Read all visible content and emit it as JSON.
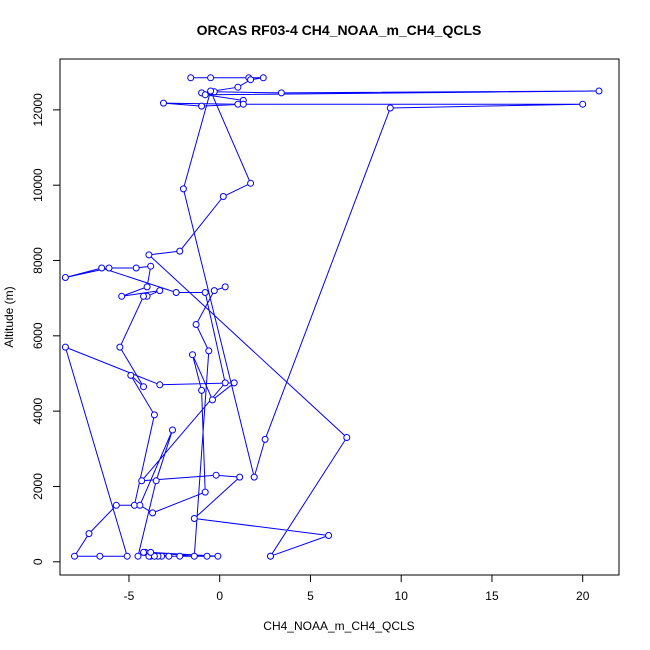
{
  "chart_data": {
    "type": "line",
    "title": "ORCAS RF03-4 CH4_NOAA_m_CH4_QCLS",
    "xlabel": "CH4_NOAA_m_CH4_QCLS",
    "ylabel": "Altitude (m)",
    "xlim": [
      -8.8,
      22
    ],
    "ylim": [
      -350,
      13350
    ],
    "xticks": [
      -5,
      0,
      5,
      10,
      15,
      20
    ],
    "yticks": [
      0,
      2000,
      4000,
      6000,
      8000,
      10000,
      12000
    ],
    "grid": false,
    "marker": "open-circle",
    "color": "#0000ff",
    "series": [
      {
        "x": [
          -1.6,
          -0.5,
          1.6,
          2.4,
          1.7,
          1.0,
          -1.0,
          -0.3,
          3.4,
          20.9,
          -0.8,
          1.3,
          1.0,
          -3.1,
          -1.0,
          1.3,
          20.0,
          9.4,
          2.5,
          1.9,
          -2.0,
          -0.5,
          1.7,
          0.2,
          -2.2,
          -3.9,
          7.0,
          2.8,
          2.8,
          6.0,
          -1.4,
          1.1,
          -0.2,
          -4.3,
          0.3,
          -0.8,
          -2.4,
          -6.5,
          -8.5,
          -6.1,
          -4.6,
          -3.8,
          -4.0,
          -5.4,
          -3.3,
          -4.0,
          -4.2,
          -5.5,
          -4.2,
          -4.9,
          -3.6,
          -4.7,
          -5.7,
          -7.2,
          -8.0,
          -6.6,
          -5.1,
          -8.5,
          -3.3,
          0.8,
          -0.4,
          -1.5,
          -1.0,
          -0.8,
          -3.7,
          -4.4,
          -2.6,
          -3.5,
          -4.5,
          -4.1,
          -3.8,
          -4.2,
          -2.8,
          -3.9,
          -3.2,
          -3.4,
          -2.2,
          -3.6,
          -0.7,
          -0.1,
          -3.8,
          -1.4,
          -0.6,
          -1.3,
          -0.3,
          0.3
        ],
        "y": [
          12850,
          12850,
          12850,
          12850,
          12800,
          12600,
          12450,
          12480,
          12450,
          12500,
          12400,
          12250,
          12150,
          12180,
          12100,
          12150,
          12150,
          12050,
          3250,
          2250,
          9900,
          12500,
          10050,
          9700,
          8250,
          8150,
          3300,
          150,
          150,
          700,
          1150,
          2250,
          2300,
          2150,
          4750,
          7150,
          7150,
          7800,
          7550,
          7800,
          7800,
          7850,
          7300,
          7050,
          7200,
          7050,
          7050,
          5700,
          4650,
          4950,
          3900,
          1500,
          1500,
          750,
          150,
          150,
          150,
          5700,
          4700,
          4750,
          4300,
          5500,
          4550,
          1850,
          1300,
          1500,
          3500,
          2150,
          150,
          250,
          150,
          250,
          150,
          150,
          150,
          150,
          150,
          150,
          150,
          150,
          250,
          150,
          5600,
          6300,
          7200,
          7300
        ]
      }
    ]
  }
}
